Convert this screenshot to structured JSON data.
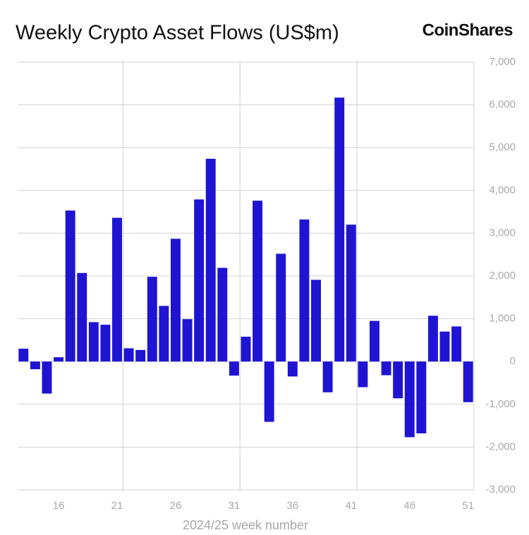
{
  "chart_data": {
    "type": "bar",
    "title": "Weekly Crypto Asset Flows (US$m)",
    "logo": "CoinShares",
    "x_label": "2024/25 week number",
    "x": [
      13,
      14,
      15,
      16,
      17,
      18,
      19,
      20,
      21,
      22,
      23,
      24,
      25,
      26,
      27,
      28,
      29,
      30,
      31,
      32,
      33,
      34,
      35,
      36,
      37,
      38,
      39,
      40,
      41,
      42,
      43,
      44,
      45,
      46,
      47,
      48,
      49,
      50,
      51
    ],
    "values": [
      300,
      -180,
      -750,
      100,
      3530,
      2070,
      920,
      860,
      3360,
      310,
      270,
      1980,
      1300,
      2870,
      990,
      3790,
      4740,
      2190,
      -330,
      580,
      3760,
      -1410,
      2520,
      -350,
      3320,
      1910,
      -720,
      6170,
      3200,
      -600,
      950,
      -320,
      -860,
      -1770,
      -1680,
      1070,
      700,
      820,
      -950
    ],
    "color": "#1f14d2",
    "xlim": [
      12.5,
      51.5
    ],
    "xticks": [
      16,
      21,
      26,
      31,
      36,
      41,
      46,
      51
    ],
    "ylim": [
      -3000,
      7000
    ],
    "yticks": [
      {
        "value": -3000,
        "label": "-3,000"
      },
      {
        "value": -2000,
        "label": "-2,000"
      },
      {
        "value": -1000,
        "label": "-1,000"
      },
      0,
      {
        "value": 1000,
        "label": "1,000"
      },
      {
        "value": 2000,
        "label": "2,000"
      },
      {
        "value": 3000,
        "label": "3,000"
      },
      {
        "value": 4000,
        "label": "4,000"
      },
      {
        "value": 5000,
        "label": "5,000"
      },
      {
        "value": 6000,
        "label": "6,000"
      },
      {
        "value": 7000,
        "label": "7,000"
      }
    ],
    "grid": true
  }
}
